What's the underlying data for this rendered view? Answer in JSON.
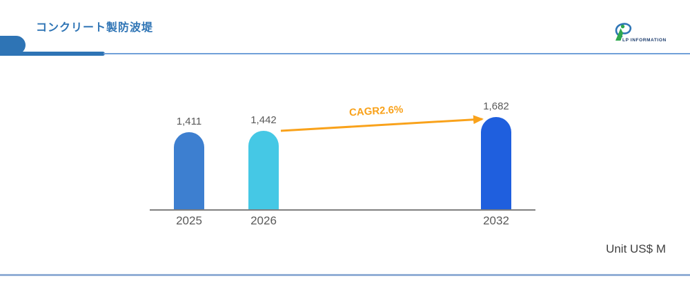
{
  "header": {
    "title": "コンクリート製防波堤",
    "logo": {
      "text": "LP INFORMATION"
    }
  },
  "chart_data": {
    "type": "bar",
    "title": "コンクリート製防波堤",
    "categories": [
      "2025",
      "2026",
      "2032"
    ],
    "values": [
      1411,
      1442,
      1682
    ],
    "value_labels": [
      "1,411",
      "1,442",
      "1,682"
    ],
    "xlabel": "",
    "ylabel": "",
    "ylim": [
      0,
      1800
    ],
    "grid": false,
    "legend": "none",
    "bar_colors": [
      "#3d7fd0",
      "#45c8e5",
      "#1f5fde"
    ],
    "annotation": {
      "label": "CAGR2.6%",
      "color": "#f9a21b",
      "from": "2026",
      "to": "2032"
    },
    "unit_label": "Unit US$ M"
  },
  "colors": {
    "title_blue": "#2e74b5",
    "accent_rule_blue": "#6f9fd8",
    "axis_gray": "#7f7f7f",
    "label_gray": "#595959",
    "bottom_rule_blue": "#92aed6",
    "logo_navy": "#1a3a6b",
    "logo_green": "#2fa84f",
    "logo_blue": "#2e75b6"
  }
}
